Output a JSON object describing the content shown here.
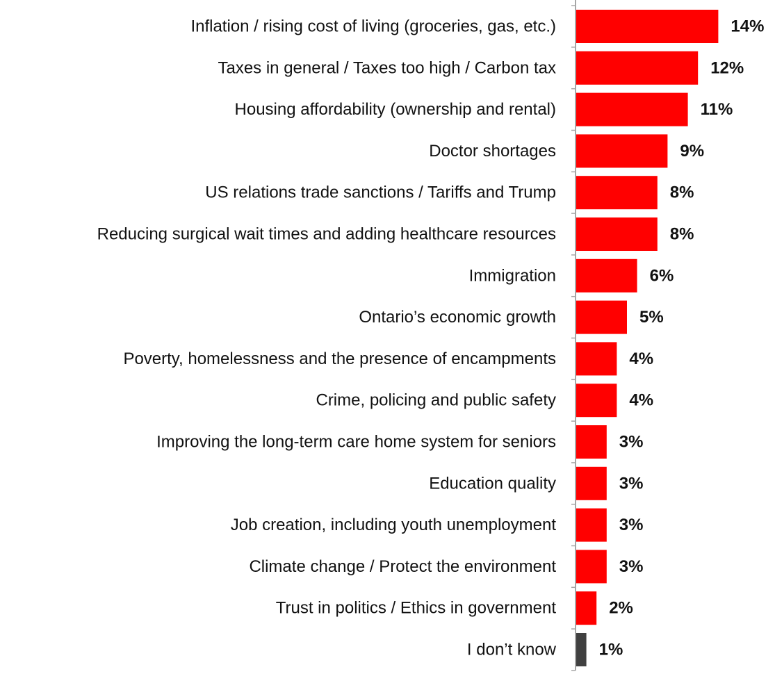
{
  "chart_data": {
    "type": "bar",
    "orientation": "horizontal",
    "categories": [
      "Inflation / rising cost of living (groceries, gas, etc.)",
      "Taxes in general / Taxes too high / Carbon tax",
      "Housing affordability (ownership and rental)",
      "Doctor shortages",
      "US relations trade sanctions / Tariffs and Trump",
      "Reducing surgical wait times and adding healthcare resources",
      "Immigration",
      "Ontario’s economic growth",
      "Poverty, homelessness and the presence of encampments",
      "Crime, policing and public safety",
      "Improving the long-term care home system for seniors",
      "Education quality",
      "Job creation, including youth unemployment",
      "Climate change / Protect the environment",
      "Trust in politics / Ethics in government",
      "I don’t know"
    ],
    "values": [
      14,
      12,
      11,
      9,
      8,
      8,
      6,
      5,
      4,
      4,
      3,
      3,
      3,
      3,
      2,
      1
    ],
    "value_labels": [
      "14%",
      "12%",
      "11%",
      "9%",
      "8%",
      "8%",
      "6%",
      "5%",
      "4%",
      "4%",
      "3%",
      "3%",
      "3%",
      "3%",
      "2%",
      "1%"
    ],
    "bar_colors": [
      "#ff0000",
      "#ff0000",
      "#ff0000",
      "#ff0000",
      "#ff0000",
      "#ff0000",
      "#ff0000",
      "#ff0000",
      "#ff0000",
      "#ff0000",
      "#ff0000",
      "#ff0000",
      "#ff0000",
      "#ff0000",
      "#ff0000",
      "#404040"
    ],
    "axis_color": "#a6a6a6",
    "grid": false,
    "legend": "none",
    "title": "",
    "xlabel": "",
    "ylabel": ""
  }
}
